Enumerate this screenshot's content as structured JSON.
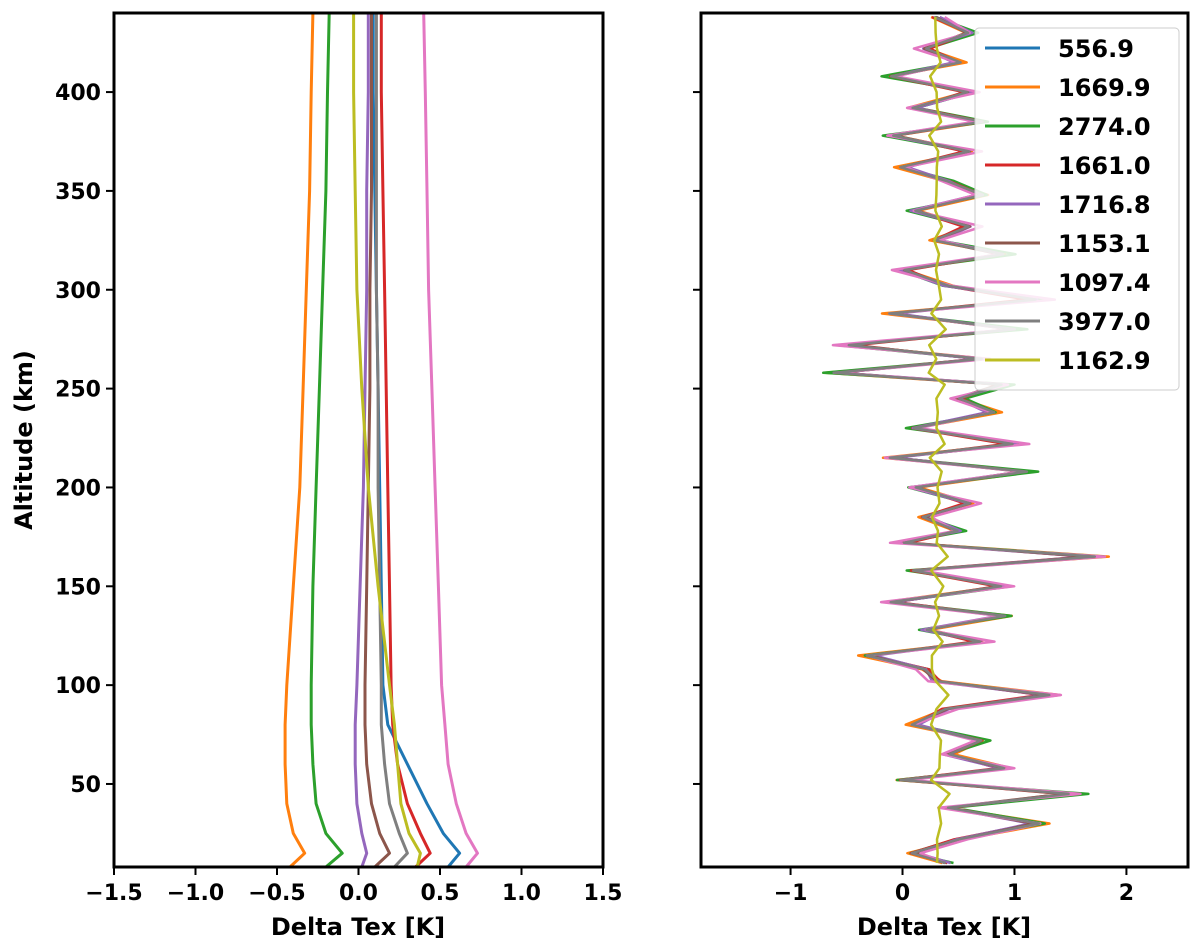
{
  "chart_data": [
    {
      "type": "line",
      "panel": "left",
      "xlabel": "Delta Tex [K]",
      "ylabel": "Altitude (km)",
      "xlim": [
        -1.5,
        1.5
      ],
      "ylim": [
        8,
        440
      ],
      "xticks": [
        -1.5,
        -1.0,
        -0.5,
        0.0,
        0.5,
        1.0,
        1.5
      ],
      "xtick_labels": [
        "−1.5",
        "−1.0",
        "−0.5",
        "0.0",
        "0.5",
        "1.0",
        "1.5"
      ],
      "yticks": [
        50,
        100,
        150,
        200,
        250,
        300,
        350,
        400
      ],
      "ytick_labels": [
        "50",
        "100",
        "150",
        "200",
        "250",
        "300",
        "350",
        "400"
      ],
      "altitudes": [
        8,
        15,
        25,
        40,
        60,
        80,
        100,
        150,
        200,
        250,
        300,
        350,
        400,
        440
      ],
      "series": [
        {
          "name": "556.9",
          "color": "#1f77b4",
          "values": [
            0.55,
            0.62,
            0.52,
            0.42,
            0.3,
            0.18,
            0.15,
            0.14,
            0.13,
            0.12,
            0.11,
            0.1,
            0.09,
            0.09
          ]
        },
        {
          "name": "1669.9",
          "color": "#ff7f0e",
          "values": [
            -0.42,
            -0.33,
            -0.4,
            -0.44,
            -0.45,
            -0.45,
            -0.44,
            -0.4,
            -0.36,
            -0.34,
            -0.32,
            -0.3,
            -0.29,
            -0.28
          ]
        },
        {
          "name": "2774.0",
          "color": "#2ca02c",
          "values": [
            -0.2,
            -0.1,
            -0.2,
            -0.26,
            -0.28,
            -0.29,
            -0.29,
            -0.28,
            -0.26,
            -0.24,
            -0.22,
            -0.2,
            -0.19,
            -0.18
          ]
        },
        {
          "name": "1661.0",
          "color": "#d62728",
          "values": [
            0.35,
            0.44,
            0.38,
            0.3,
            0.24,
            0.21,
            0.2,
            0.19,
            0.18,
            0.17,
            0.16,
            0.15,
            0.14,
            0.14
          ]
        },
        {
          "name": "1716.8",
          "color": "#9467bd",
          "values": [
            0.02,
            0.05,
            0.02,
            -0.01,
            -0.02,
            -0.02,
            -0.01,
            0.01,
            0.03,
            0.04,
            0.05,
            0.05,
            0.06,
            0.06
          ]
        },
        {
          "name": "1153.1",
          "color": "#8c564b",
          "values": [
            0.1,
            0.19,
            0.13,
            0.08,
            0.05,
            0.04,
            0.04,
            0.05,
            0.06,
            0.07,
            0.07,
            0.08,
            0.08,
            0.08
          ]
        },
        {
          "name": "1097.4",
          "color": "#e377c2",
          "values": [
            0.66,
            0.73,
            0.66,
            0.6,
            0.55,
            0.53,
            0.51,
            0.49,
            0.47,
            0.45,
            0.43,
            0.42,
            0.41,
            0.4
          ]
        },
        {
          "name": "3977.0",
          "color": "#7f7f7f",
          "values": [
            0.22,
            0.3,
            0.25,
            0.19,
            0.16,
            0.14,
            0.14,
            0.13,
            0.12,
            0.12,
            0.11,
            0.11,
            0.11,
            0.11
          ]
        },
        {
          "name": "1162.9",
          "color": "#bcbd22",
          "values": [
            0.36,
            0.38,
            0.31,
            0.26,
            0.24,
            0.22,
            0.19,
            0.12,
            0.06,
            0.02,
            -0.01,
            -0.02,
            -0.03,
            -0.03
          ]
        }
      ]
    },
    {
      "type": "line",
      "panel": "right",
      "xlabel": "Delta Tex [K]",
      "ylabel": "",
      "xlim": [
        -1.8,
        2.55
      ],
      "ylim": [
        8,
        440
      ],
      "xticks": [
        -1,
        0,
        1,
        2
      ],
      "xtick_labels": [
        "−1",
        "0",
        "1",
        "2"
      ],
      "yticks": [
        50,
        100,
        150,
        200,
        250,
        300,
        350,
        400
      ],
      "legend_location": "top-right",
      "altitudes": [
        10,
        15,
        22,
        30,
        38,
        45,
        52,
        58,
        65,
        72,
        80,
        88,
        95,
        102,
        108,
        115,
        122,
        128,
        135,
        142,
        150,
        158,
        165,
        172,
        178,
        185,
        192,
        200,
        208,
        215,
        222,
        230,
        238,
        245,
        252,
        258,
        265,
        272,
        280,
        288,
        295,
        302,
        310,
        318,
        325,
        332,
        340,
        348,
        355,
        362,
        370,
        378,
        385,
        392,
        400,
        408,
        415,
        422,
        430,
        438
      ],
      "base_profile": [
        0.1,
        -0.2,
        0.2,
        0.9,
        0.1,
        1.2,
        -0.3,
        0.6,
        0.1,
        0.4,
        -0.2,
        0.1,
        1.0,
        0.0,
        -0.1,
        -0.6,
        0.4,
        -0.1,
        0.6,
        -0.4,
        0.6,
        -0.2,
        1.4,
        -0.3,
        0.2,
        -0.1,
        0.3,
        -0.2,
        0.8,
        -0.4,
        0.7,
        -0.2,
        0.5,
        0.2,
        0.6,
        -0.9,
        0.4,
        -0.8,
        0.7,
        -0.4,
        0.9,
        0.1,
        -0.3,
        0.6,
        0.0,
        0.3,
        -0.2,
        0.4,
        0.1,
        -0.3,
        0.3,
        -0.4,
        0.4,
        -0.2,
        0.3,
        -0.4,
        0.2,
        -0.1,
        0.3,
        0.0
      ],
      "series": [
        {
          "name": "556.9",
          "color": "#1f77b4"
        },
        {
          "name": "1669.9",
          "color": "#ff7f0e"
        },
        {
          "name": "2774.0",
          "color": "#2ca02c"
        },
        {
          "name": "1661.0",
          "color": "#d62728"
        },
        {
          "name": "1716.8",
          "color": "#9467bd"
        },
        {
          "name": "1153.1",
          "color": "#8c564b"
        },
        {
          "name": "1097.4",
          "color": "#e377c2"
        },
        {
          "name": "3977.0",
          "color": "#7f7f7f"
        },
        {
          "name": "1162.9",
          "color": "#bcbd22"
        }
      ]
    }
  ]
}
